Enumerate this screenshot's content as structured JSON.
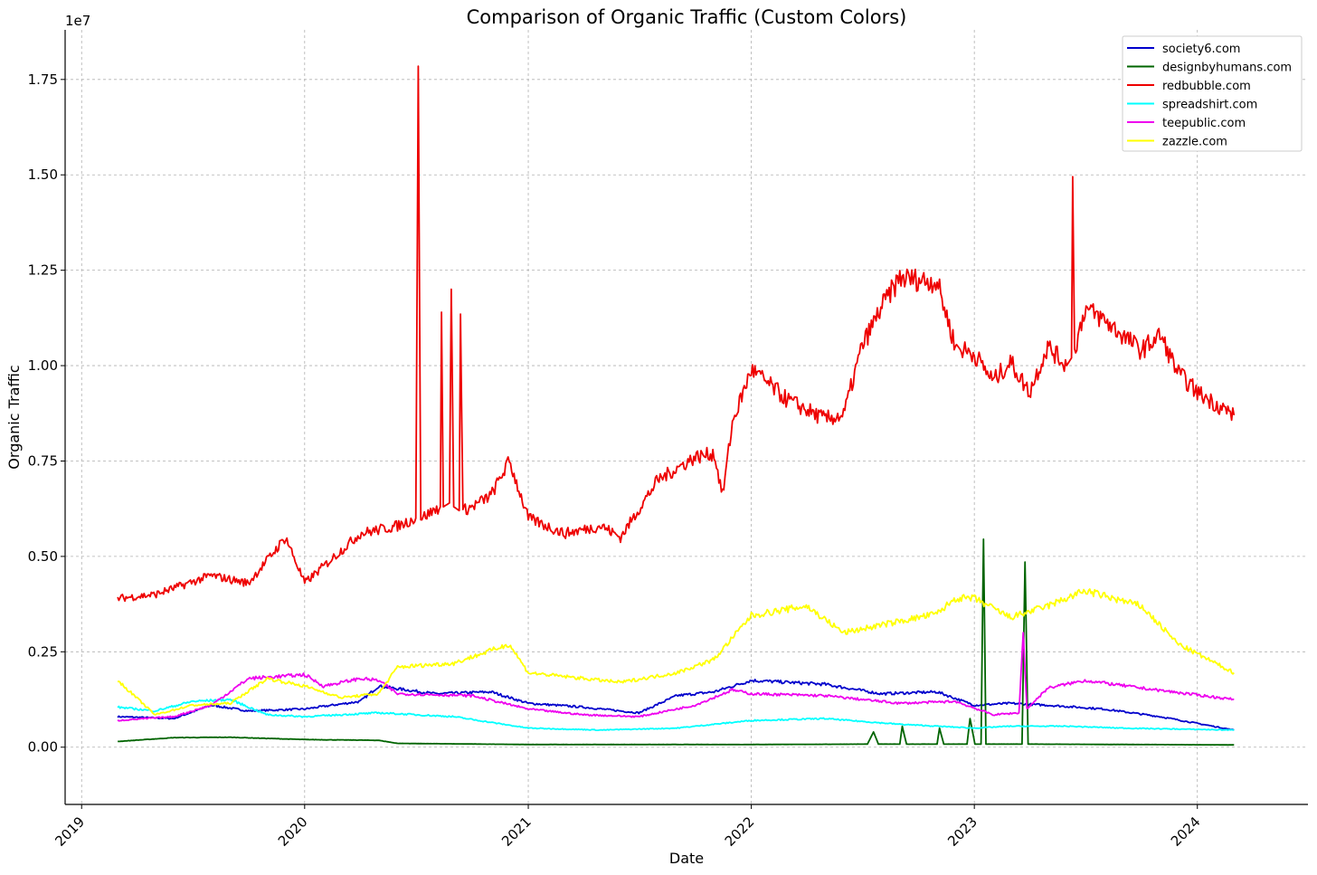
{
  "chart_data": {
    "type": "line",
    "title": "Comparison of Organic Traffic (Custom Colors)",
    "xlabel": "Date",
    "ylabel": "Organic Traffic",
    "y_multiplier_label": "1e7",
    "xlim": [
      "2018-12-05",
      "2024-06-30"
    ],
    "ylim": [
      -1500000,
      18800000
    ],
    "x_ticks": [
      "2019-01-01",
      "2020-01-01",
      "2021-01-01",
      "2022-01-01",
      "2023-01-01",
      "2024-01-01"
    ],
    "x_tick_labels": [
      "2019",
      "2020",
      "2021",
      "2022",
      "2023",
      "2024"
    ],
    "y_ticks": [
      0,
      2500000,
      5000000,
      7500000,
      10000000,
      12500000,
      15000000,
      17500000
    ],
    "y_tick_labels": [
      "0.00",
      "0.25",
      "0.50",
      "0.75",
      "1.00",
      "1.25",
      "1.50",
      "1.75"
    ],
    "grid": true,
    "legend_position": "top-right",
    "series": [
      {
        "name": "society6.com",
        "color": "#0000cc",
        "points": [
          [
            "2019-03-01",
            800000
          ],
          [
            "2019-06-01",
            750000
          ],
          [
            "2019-08-01",
            1100000
          ],
          [
            "2019-10-01",
            950000
          ],
          [
            "2020-01-01",
            1000000
          ],
          [
            "2020-04-01",
            1200000
          ],
          [
            "2020-05-01",
            1600000
          ],
          [
            "2020-08-01",
            1400000
          ],
          [
            "2020-11-01",
            1450000
          ],
          [
            "2021-01-01",
            1150000
          ],
          [
            "2021-04-01",
            1050000
          ],
          [
            "2021-07-01",
            900000
          ],
          [
            "2021-09-01",
            1350000
          ],
          [
            "2021-11-01",
            1450000
          ],
          [
            "2022-01-01",
            1750000
          ],
          [
            "2022-05-01",
            1650000
          ],
          [
            "2022-08-01",
            1400000
          ],
          [
            "2022-11-01",
            1450000
          ],
          [
            "2023-01-01",
            1100000
          ],
          [
            "2023-03-01",
            1150000
          ],
          [
            "2023-05-01",
            1100000
          ],
          [
            "2023-08-01",
            1000000
          ],
          [
            "2023-11-01",
            800000
          ],
          [
            "2024-03-01",
            450000
          ]
        ]
      },
      {
        "name": "designbyhumans.com",
        "color": "#006400",
        "points": [
          [
            "2019-03-01",
            150000
          ],
          [
            "2019-06-01",
            250000
          ],
          [
            "2019-09-01",
            260000
          ],
          [
            "2020-01-01",
            200000
          ],
          [
            "2020-05-01",
            180000
          ],
          [
            "2020-06-01",
            100000
          ],
          [
            "2021-01-01",
            70000
          ],
          [
            "2022-01-01",
            70000
          ],
          [
            "2022-07-10",
            80000
          ],
          [
            "2022-07-20",
            400000
          ],
          [
            "2022-07-28",
            80000
          ],
          [
            "2022-09-01",
            80000
          ],
          [
            "2022-09-05",
            550000
          ],
          [
            "2022-09-12",
            80000
          ],
          [
            "2022-11-01",
            80000
          ],
          [
            "2022-11-05",
            500000
          ],
          [
            "2022-11-12",
            80000
          ],
          [
            "2022-12-20",
            80000
          ],
          [
            "2022-12-25",
            750000
          ],
          [
            "2023-01-02",
            80000
          ],
          [
            "2023-01-12",
            80000
          ],
          [
            "2023-01-16",
            5450000
          ],
          [
            "2023-01-20",
            80000
          ],
          [
            "2023-03-20",
            80000
          ],
          [
            "2023-03-25",
            4850000
          ],
          [
            "2023-03-30",
            80000
          ],
          [
            "2024-03-01",
            60000
          ]
        ]
      },
      {
        "name": "redbubble.com",
        "color": "#ee0000",
        "points": [
          [
            "2019-03-01",
            3900000
          ],
          [
            "2019-05-01",
            4000000
          ],
          [
            "2019-08-01",
            4500000
          ],
          [
            "2019-10-01",
            4300000
          ],
          [
            "2019-12-01",
            5500000
          ],
          [
            "2020-01-01",
            4300000
          ],
          [
            "2020-04-01",
            5600000
          ],
          [
            "2020-06-01",
            5800000
          ],
          [
            "2020-07-01",
            6000000
          ],
          [
            "2020-07-05",
            17850000
          ],
          [
            "2020-07-09",
            6000000
          ],
          [
            "2020-08-10",
            6300000
          ],
          [
            "2020-08-12",
            11400000
          ],
          [
            "2020-08-15",
            6300000
          ],
          [
            "2020-08-25",
            6400000
          ],
          [
            "2020-08-28",
            12000000
          ],
          [
            "2020-09-01",
            6300000
          ],
          [
            "2020-09-10",
            6200000
          ],
          [
            "2020-09-12",
            11350000
          ],
          [
            "2020-09-16",
            6200000
          ],
          [
            "2020-10-01",
            6300000
          ],
          [
            "2020-11-01",
            6600000
          ],
          [
            "2020-12-01",
            7500000
          ],
          [
            "2021-01-01",
            6000000
          ],
          [
            "2021-03-01",
            5600000
          ],
          [
            "2021-05-01",
            5800000
          ],
          [
            "2021-06-01",
            5500000
          ],
          [
            "2021-08-01",
            7000000
          ],
          [
            "2021-10-01",
            7600000
          ],
          [
            "2021-11-01",
            7700000
          ],
          [
            "2021-11-15",
            6600000
          ],
          [
            "2021-12-01",
            8500000
          ],
          [
            "2022-01-01",
            9900000
          ],
          [
            "2022-03-01",
            9100000
          ],
          [
            "2022-05-01",
            8600000
          ],
          [
            "2022-06-01",
            8700000
          ],
          [
            "2022-07-01",
            10500000
          ],
          [
            "2022-08-01",
            11500000
          ],
          [
            "2022-09-01",
            12300000
          ],
          [
            "2022-11-01",
            12200000
          ],
          [
            "2022-12-01",
            10500000
          ],
          [
            "2023-01-01",
            10300000
          ],
          [
            "2023-02-01",
            9600000
          ],
          [
            "2023-03-01",
            10100000
          ],
          [
            "2023-04-01",
            9300000
          ],
          [
            "2023-05-01",
            10500000
          ],
          [
            "2023-06-01",
            10000000
          ],
          [
            "2023-06-09",
            10200000
          ],
          [
            "2023-06-11",
            14950000
          ],
          [
            "2023-06-14",
            10400000
          ],
          [
            "2023-07-01",
            11500000
          ],
          [
            "2023-08-01",
            11200000
          ],
          [
            "2023-10-01",
            10400000
          ],
          [
            "2023-11-01",
            10800000
          ],
          [
            "2023-12-01",
            9800000
          ],
          [
            "2024-01-01",
            9300000
          ],
          [
            "2024-03-01",
            8700000
          ]
        ]
      },
      {
        "name": "spreadshirt.com",
        "color": "#00ffff",
        "points": [
          [
            "2019-03-01",
            1050000
          ],
          [
            "2019-05-01",
            950000
          ],
          [
            "2019-07-01",
            1200000
          ],
          [
            "2019-09-01",
            1250000
          ],
          [
            "2019-11-01",
            850000
          ],
          [
            "2020-01-01",
            800000
          ],
          [
            "2020-05-01",
            900000
          ],
          [
            "2020-09-01",
            800000
          ],
          [
            "2021-01-01",
            500000
          ],
          [
            "2021-05-01",
            450000
          ],
          [
            "2021-09-01",
            500000
          ],
          [
            "2022-01-01",
            700000
          ],
          [
            "2022-05-01",
            750000
          ],
          [
            "2022-09-01",
            600000
          ],
          [
            "2023-01-01",
            500000
          ],
          [
            "2023-03-01",
            550000
          ],
          [
            "2023-06-01",
            550000
          ],
          [
            "2023-09-01",
            500000
          ],
          [
            "2024-03-01",
            450000
          ]
        ]
      },
      {
        "name": "teepublic.com",
        "color": "#ee00ee",
        "points": [
          [
            "2019-03-01",
            700000
          ],
          [
            "2019-06-01",
            800000
          ],
          [
            "2019-08-01",
            1100000
          ],
          [
            "2019-10-01",
            1800000
          ],
          [
            "2020-01-01",
            1900000
          ],
          [
            "2020-02-01",
            1600000
          ],
          [
            "2020-04-01",
            1800000
          ],
          [
            "2020-05-01",
            1750000
          ],
          [
            "2020-06-01",
            1400000
          ],
          [
            "2020-10-01",
            1350000
          ],
          [
            "2021-01-01",
            1000000
          ],
          [
            "2021-04-01",
            850000
          ],
          [
            "2021-07-01",
            800000
          ],
          [
            "2021-10-01",
            1100000
          ],
          [
            "2021-12-01",
            1500000
          ],
          [
            "2022-01-01",
            1400000
          ],
          [
            "2022-05-01",
            1350000
          ],
          [
            "2022-09-01",
            1150000
          ],
          [
            "2022-12-01",
            1200000
          ],
          [
            "2023-02-01",
            850000
          ],
          [
            "2023-03-15",
            900000
          ],
          [
            "2023-03-22",
            3000000
          ],
          [
            "2023-03-28",
            1000000
          ],
          [
            "2023-05-01",
            1550000
          ],
          [
            "2023-07-01",
            1750000
          ],
          [
            "2023-10-01",
            1550000
          ],
          [
            "2024-03-01",
            1250000
          ]
        ]
      },
      {
        "name": "zazzle.com",
        "color": "#ffff00",
        "points": [
          [
            "2019-03-01",
            1750000
          ],
          [
            "2019-05-01",
            850000
          ],
          [
            "2019-07-01",
            1100000
          ],
          [
            "2019-09-01",
            1150000
          ],
          [
            "2019-11-01",
            1800000
          ],
          [
            "2020-01-01",
            1600000
          ],
          [
            "2020-03-01",
            1300000
          ],
          [
            "2020-05-01",
            1400000
          ],
          [
            "2020-06-01",
            2100000
          ],
          [
            "2020-09-01",
            2200000
          ],
          [
            "2020-12-01",
            2700000
          ],
          [
            "2021-01-01",
            1950000
          ],
          [
            "2021-06-01",
            1700000
          ],
          [
            "2021-09-01",
            1950000
          ],
          [
            "2021-11-01",
            2300000
          ],
          [
            "2022-01-01",
            3450000
          ],
          [
            "2022-04-01",
            3700000
          ],
          [
            "2022-06-01",
            3000000
          ],
          [
            "2022-09-01",
            3300000
          ],
          [
            "2022-11-01",
            3500000
          ],
          [
            "2022-12-01",
            3900000
          ],
          [
            "2023-01-01",
            3900000
          ],
          [
            "2023-03-01",
            3400000
          ],
          [
            "2023-05-01",
            3700000
          ],
          [
            "2023-07-01",
            4100000
          ],
          [
            "2023-10-01",
            3700000
          ],
          [
            "2023-12-01",
            2700000
          ],
          [
            "2024-03-01",
            1950000
          ]
        ]
      }
    ]
  }
}
